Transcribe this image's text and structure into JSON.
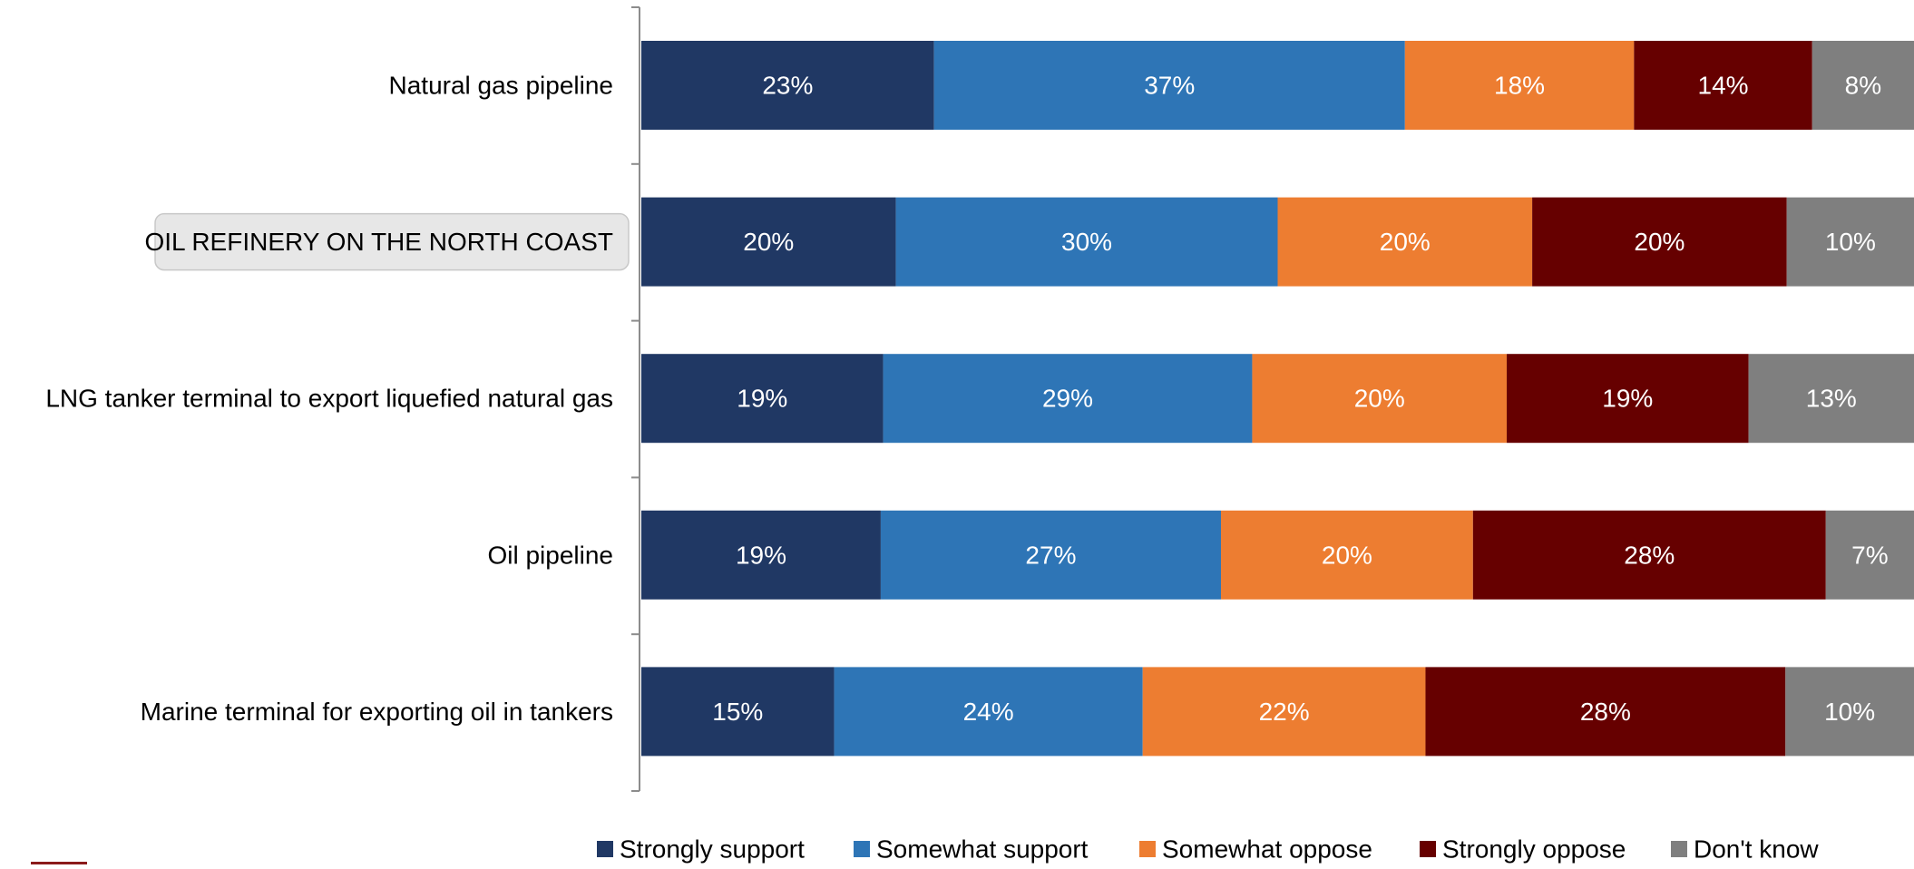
{
  "chart_data": {
    "type": "bar",
    "orientation": "horizontal",
    "stacked": true,
    "title": "",
    "xlabel": "",
    "ylabel": "",
    "xlim": [
      0,
      100
    ],
    "grid": false,
    "legend_position": "bottom",
    "categories": [
      "Natural gas pipeline",
      "OIL REFINERY ON THE NORTH COAST",
      "LNG tanker terminal to export liquefied natural gas",
      "Oil pipeline",
      "Marine terminal for exporting oil in tankers"
    ],
    "highlighted_category": "OIL REFINERY ON THE NORTH COAST",
    "series": [
      {
        "name": "Strongly support",
        "color": "#203864",
        "values": [
          23,
          20,
          19,
          19,
          15
        ]
      },
      {
        "name": "Somewhat support",
        "color": "#2E75B6",
        "values": [
          37,
          30,
          29,
          27,
          24
        ]
      },
      {
        "name": "Somewhat oppose",
        "color": "#ED7D31",
        "values": [
          18,
          20,
          20,
          20,
          22
        ]
      },
      {
        "name": "Strongly oppose",
        "color": "#660000",
        "values": [
          14,
          20,
          19,
          28,
          28
        ]
      },
      {
        "name": "Don't know",
        "color": "#7F7F7F",
        "values": [
          8,
          10,
          13,
          7,
          10
        ]
      }
    ],
    "value_suffix": "%"
  }
}
